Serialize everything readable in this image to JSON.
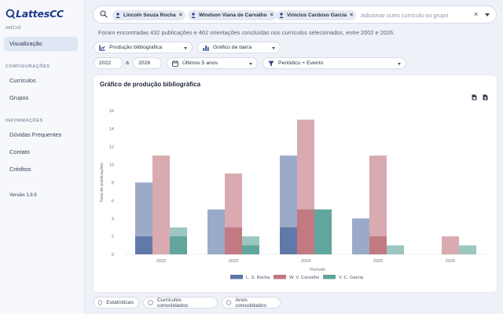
{
  "app": {
    "name": "LattesCC",
    "version": "Versão 1.0.0"
  },
  "sidebar": {
    "sections": [
      {
        "title": "INÍCIO",
        "items": [
          {
            "label": "Visualização",
            "active": true
          }
        ]
      },
      {
        "title": "CONFIGURAÇÕES",
        "items": [
          {
            "label": "Currículos"
          },
          {
            "label": "Grupos"
          }
        ]
      },
      {
        "title": "INFORMAÇÕES",
        "items": [
          {
            "label": "Dúvidas Frequentes"
          },
          {
            "label": "Contato"
          },
          {
            "label": "Créditos"
          }
        ]
      }
    ]
  },
  "search": {
    "chips": [
      "Lincoln Souza Rocha",
      "Windson Viana de Carvalho",
      "Vinicius Cardoso Garcia"
    ],
    "chip_close": "×",
    "placeholder": "Adicionar outro currículo ou grupo",
    "clear": "×"
  },
  "summary": "Foram encontradas 432 publicações e 462 orientações concluídas nos currículos selecionados, entre 2002 e 2026.",
  "filters": {
    "type": "Produção bibliográfica",
    "chart": "Gráfico de barra",
    "year_from": "2022",
    "range_sep": "a",
    "year_to": "2026",
    "period": "Últimos 5 anos",
    "group_by": "Periódico + Evento"
  },
  "chart_card": {
    "title": "Gráfico de produção bibliográfica"
  },
  "tabs": [
    "Estatísticas",
    "Currículos consolidados",
    "Anos consolidados"
  ],
  "colors": {
    "accent": "#1e3a8a",
    "rocha": "#5e76a6",
    "carvalho": "#c17680",
    "garcia": "#5fa39a"
  },
  "chart_data": {
    "type": "bar",
    "ylabel": "Total de publicações",
    "xlabel": "Período",
    "ylim": [
      0,
      16
    ],
    "yticks": [
      0,
      2,
      4,
      6,
      8,
      10,
      12,
      14,
      16
    ],
    "categories": [
      "2022",
      "2023",
      "2024",
      "2025",
      "2026"
    ],
    "stacked_parts": [
      "Periódico (dark)",
      "Evento (light)"
    ],
    "series": [
      {
        "name": "L. S. Rocha",
        "color": "#5e76a6",
        "periodico": [
          2,
          0,
          3,
          0,
          0
        ],
        "total": [
          8,
          5,
          11,
          4,
          0
        ]
      },
      {
        "name": "W. V. Carvalho",
        "color": "#c17680",
        "periodico": [
          0,
          3,
          5,
          2,
          0
        ],
        "total": [
          11,
          9,
          15,
          11,
          2
        ]
      },
      {
        "name": "V. C. Garcia",
        "color": "#5fa39a",
        "periodico": [
          2,
          1,
          5,
          0,
          0
        ],
        "total": [
          3,
          2,
          5,
          1,
          1
        ]
      }
    ],
    "legend_position": "bottom-center",
    "grid": false
  }
}
